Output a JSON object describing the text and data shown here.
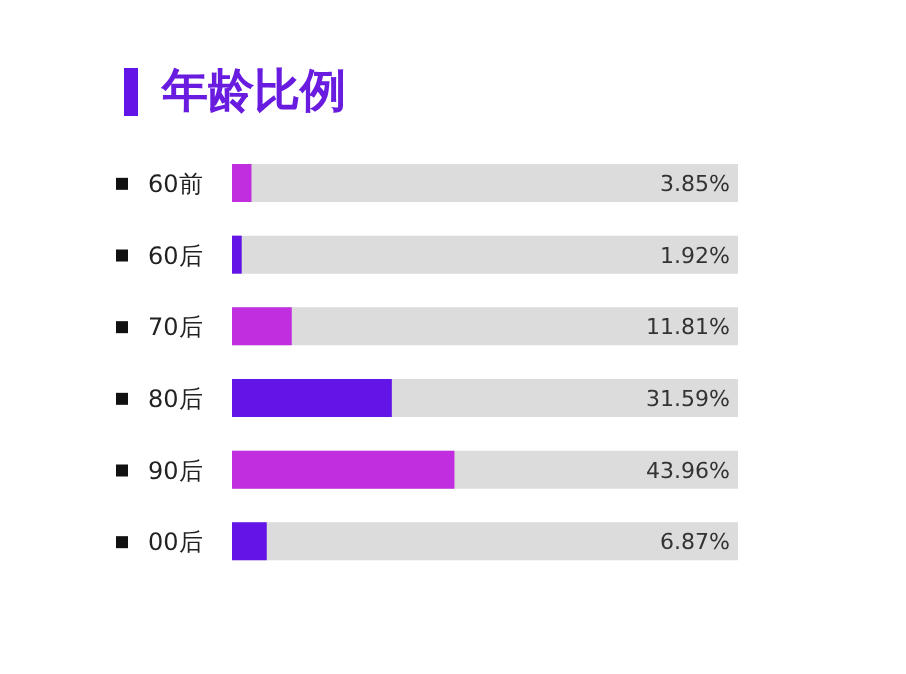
{
  "chart_data": {
    "type": "bar",
    "orientation": "horizontal",
    "title": "年龄比例",
    "categories": [
      "60前",
      "60后",
      "70后",
      "80后",
      "90后",
      "00后"
    ],
    "values": [
      3.85,
      1.92,
      11.81,
      31.59,
      43.96,
      6.87
    ],
    "colors": [
      "#c02ee0",
      "#6215e6",
      "#c02ee0",
      "#6215e6",
      "#c02ee0",
      "#6215e6"
    ],
    "value_labels": [
      "3.85%",
      "1.92%",
      "11.81%",
      "31.59%",
      "43.96%",
      "6.87%"
    ],
    "xlim": [
      0,
      100
    ],
    "tick_labels": "y"
  }
}
